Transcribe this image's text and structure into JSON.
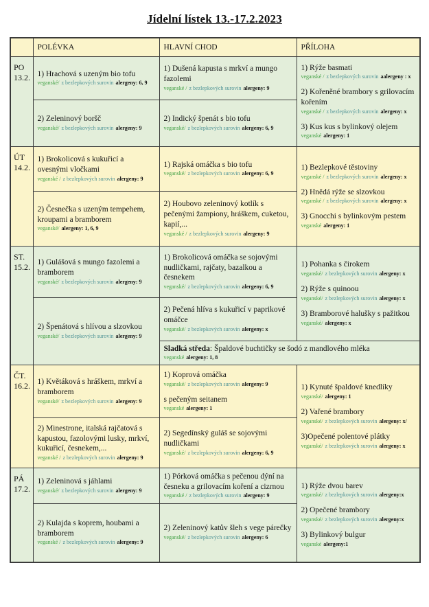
{
  "title": "Jídelní lístek 13.-17.2.2023",
  "columns": {
    "soup": "POLÉVKA",
    "main": "HLAVNÍ CHOD",
    "side": "PŘÍLOHA"
  },
  "colors": {
    "row_yellow": "#fbf4ca",
    "row_green": "#e3eeda",
    "vegan_green": "#41a045",
    "gluten_teal": "#4f9396",
    "border": "#3b3b3b"
  },
  "tags_legend": {
    "vegan": "veganské",
    "gluten_free": "z bezlepkových surovin"
  },
  "days": [
    {
      "label": "PO",
      "date": "13.2.",
      "soup1": [
        {
          "name": "1) Hrachová s uzeným bio tofu",
          "vegan": "veganské/",
          "gluten": "z bezlepkových surovin",
          "alergeny": "alergeny: 6, 9"
        }
      ],
      "soup2": [
        {
          "name": "2) Zeleninový boršč",
          "vegan": "veganské/",
          "gluten": "z bezlepkových surovin",
          "alergeny": "alergeny: 9"
        }
      ],
      "main1": [
        {
          "name": "1) Dušená kapusta s mrkví a mungo fazolemi",
          "vegan": "veganské /",
          "gluten": "z bezlepkových surovin",
          "alergeny": "alergeny: 9"
        }
      ],
      "main2": [
        {
          "name": "2) Indický špenát s bio tofu",
          "vegan": "veganské/",
          "gluten": "z bezlepkových surovin",
          "alergeny": "alergeny: 6, 9"
        }
      ],
      "sides": [
        {
          "name": "1) Rýže basmati",
          "vegan": "veganské /",
          "gluten": "z bezlepkových surovin",
          "alergeny": "aalergeny : x"
        },
        {
          "name": "2) Kořeněné brambory s grilovacím kořením",
          "vegan": "veganské /",
          "gluten": "z bezlepkových surovin",
          "alergeny": "alergeny: x"
        },
        {
          "name": "3) Kus kus s bylinkový olejem",
          "vegan": "veganské",
          "gluten": "",
          "alergeny": "alergeny: 1"
        }
      ]
    },
    {
      "label": "ÚT",
      "date": "14.2.",
      "soup1": [
        {
          "name": "1) Brokolicová s kukuřicí a ovesnými vločkami",
          "vegan": "veganské /",
          "gluten": "z bezlepkových surovin",
          "alergeny": "alergeny: 9"
        }
      ],
      "soup2": [
        {
          "name": "2) Česnečka s uzeným tempehem, kroupami a bramborem",
          "vegan": "veganské/",
          "gluten": "",
          "alergeny": "alergeny: 1, 6, 9"
        }
      ],
      "main1": [
        {
          "name": "1) Rajská omáčka s bio tofu",
          "vegan": "veganské/",
          "gluten": "z bezlepkových surovin",
          "alergeny": "alergeny: 6, 9"
        }
      ],
      "main2": [
        {
          "name": "2) Houbovo zeleninový kotlík s pečenými žampiony, hráškem, cuketou, kapií,...",
          "vegan": "veganské /",
          "gluten": "z bezlepkových surovin",
          "alergeny": "alergeny: 9"
        }
      ],
      "sides": [
        {
          "name": "1) Bezlepkové těstoviny",
          "vegan": "veganské /",
          "gluten": "z bezlepkových surovin",
          "alergeny": "alergeny: x"
        },
        {
          "name": "2)  Hnědá rýže se slzovkou",
          "vegan": "veganské /",
          "gluten": "z bezlepkových surovin",
          "alergeny": "alergeny: x"
        },
        {
          "name": "3) Gnocchi s bylinkovým pestem",
          "vegan": "veganské",
          "gluten": "",
          "alergeny": "alergeny: 1"
        }
      ]
    },
    {
      "label": "ST.",
      "date": "15.2.",
      "soup1": [
        {
          "name": "1) Gulášová s mungo fazolemi a bramborem",
          "vegan": "veganské/",
          "gluten": "z bezlepkových surovin",
          "alergeny": "alergeny: 9"
        }
      ],
      "soup2": [
        {
          "name": "2) Špenátová s hlívou a slzovkou",
          "vegan": "veganské/",
          "gluten": "z bezlepkových surovin",
          "alergeny": "alergeny: 9"
        }
      ],
      "main1": [
        {
          "name": "1) Brokolicová omáčka se sojovými nudličkami, rajčaty, bazalkou a česnekem",
          "vegan": "veganské/",
          "gluten": "z bezlepkových surovin",
          "alergeny": "alergeny: 6, 9"
        }
      ],
      "main2": [
        {
          "name": "2) Pečená hlíva s kukuřicí v paprikové omáčce",
          "vegan": "veganské/",
          "gluten": "z bezlepkových surovin",
          "alergeny": "alergeny: x"
        }
      ],
      "sides": [
        {
          "name": "1) Pohanka s čirokem",
          "vegan": "veganské/",
          "gluten": "z bezlepkových surovin",
          "alergeny": "alergeny: x"
        },
        {
          "name": "2) Rýže s quinoou",
          "vegan": "veganské/",
          "gluten": "z bezlepkových surovin",
          "alergeny": "alergeny: x"
        },
        {
          "name": "3) Bramborové halušky s pažitkou",
          "vegan": "veganské/",
          "gluten": "",
          "alergeny": "alergeny: x"
        }
      ],
      "special": {
        "bold": "Sladká středa",
        "rest": ": Špaldové buchtičky se šodó z mandlového mléka",
        "vegan": "veganské",
        "alergeny": "alergeny: 1, 8"
      }
    },
    {
      "label": "ČT.",
      "date": "16.2.",
      "soup1": [
        {
          "name": "1) Květáková s hráškem, mrkví a bramborem",
          "vegan": "veganské/",
          "gluten": "z bezlepkových surovin",
          "alergeny": "alergeny: 9"
        }
      ],
      "soup2": [
        {
          "name": "2) Minestrone, italská rajčatová s kapustou, fazolovými lusky, mrkví, kukuřicí, česnekem,...",
          "vegan": "veganské /",
          "gluten": "z bezlepkových surovin",
          "alergeny": "alergeny: 9"
        }
      ],
      "main1": [
        {
          "name": "1) Koprová omáčka",
          "vegan": "veganské/",
          "gluten": "z bezlepkových surovin",
          "alergeny": "alergeny: 9"
        },
        {
          "name": " s pečeným seitanem",
          "vegan": "veganské",
          "gluten": "",
          "alergeny": "alergeny: 1"
        }
      ],
      "main2": [
        {
          "name": "2) Segedínský guláš se sojovými nudličkami",
          "vegan": "veganské/",
          "gluten": "z bezlepkových surovin",
          "alergeny": "alergeny: 6, 9"
        }
      ],
      "sides": [
        {
          "name": "1) Kynuté špaldové knedlíky",
          "vegan": "veganské/",
          "gluten": "",
          "alergeny": "alergeny: 1"
        },
        {
          "name": "2) Vařené brambory",
          "vegan": "veganské/",
          "gluten": "z bezlepkových surovin",
          "alergeny": "alergeny: x/"
        },
        {
          "name": "3)Opečené polentové plátky",
          "vegan": "veganské/",
          "gluten": "z bezlepkových surovin",
          "alergeny": "alergeny: x"
        }
      ]
    },
    {
      "label": "PÁ",
      "date": "17.2.",
      "soup1": [
        {
          "name": "1) Zeleninová s jáhlami",
          "vegan": "veganské/",
          "gluten": "z bezlepkových surovin",
          "alergeny": "alergeny: 9"
        }
      ],
      "soup2": [
        {
          "name": "2) Kulajda s koprem, houbami a bramborem",
          "vegan": "veganské /",
          "gluten": "z bezlepkových surovin",
          "alergeny": "alergeny: 9"
        }
      ],
      "main1": [
        {
          "name": "1) Pórková omáčka s pečenou dýní na česneku a grilovacím koření a cizrnou",
          "vegan": "veganské /",
          "gluten": "z bezlepkových surovin",
          "alergeny": "alergeny: 9"
        }
      ],
      "main2": [
        {
          "name": "2) Zeleninový katův šleh s vege párečky",
          "vegan": "veganské/",
          "gluten": "z bezlepkových surovin",
          "alergeny": "alergeny: 6"
        }
      ],
      "sides": [
        {
          "name": "1) Rýže dvou barev",
          "vegan": "veganské/",
          "gluten": "z bezlepkových surovin",
          "alergeny": "alergeny:x"
        },
        {
          "name": "2) Opečené brambory",
          "vegan": "veganské/",
          "gluten": "z bezlepkových surovin",
          "alergeny": "alergeny:x"
        },
        {
          "name": "3)  Bylinkový bulgur",
          "vegan": "veganské",
          "gluten": "",
          "alergeny": "alergeny:1"
        }
      ]
    }
  ]
}
